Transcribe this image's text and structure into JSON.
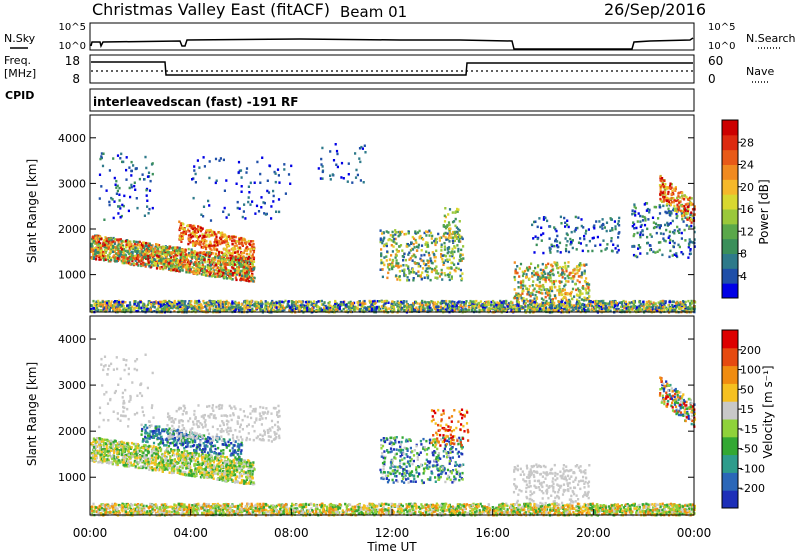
{
  "header": {
    "title": "Christmas Valley East (fitACF)",
    "beam": "Beam 01",
    "date": "26/Sep/2016"
  },
  "strips": {
    "nsky_label": "N.Sky",
    "nsky_ticks": [
      "10^5",
      "10^0"
    ],
    "nsearch_label": "N.Search",
    "nsearch_ticks": [
      "10^5",
      "10^0"
    ],
    "freq_label": "Freq.",
    "freq_unit": "[MHz]",
    "freq_ticks": [
      "18",
      "8"
    ],
    "nave_label": "Nave",
    "nave_ticks": [
      "60",
      "0"
    ],
    "cpid_label": "CPID",
    "cpid_text": "interleavedscan (fast) -191 RF"
  },
  "chart_data": [
    {
      "type": "heatmap",
      "name": "power",
      "ylabel": "Slant Range [km]",
      "yticks": [
        "4000",
        "3000",
        "2000",
        "1000"
      ],
      "xlim": [
        0,
        24
      ],
      "ylim": [
        180,
        4500
      ],
      "colorbar": {
        "label": "Power [dB]",
        "ticks": [
          "28",
          "24",
          "20",
          "16",
          "12",
          "8",
          "4"
        ],
        "colors": [
          "#0000e6",
          "#1f4fa8",
          "#2e7a8a",
          "#3a8f5a",
          "#5aa84a",
          "#9ac83a",
          "#d8d830",
          "#f5b82a",
          "#f08a20",
          "#e85a18",
          "#dd2a10",
          "#cc0000"
        ]
      },
      "echo_regions": [
        {
          "t": [
            0.0,
            6.5
          ],
          "range": [
            800,
            1900
          ],
          "level": "high"
        },
        {
          "t": [
            3.5,
            6.5
          ],
          "range": [
            1400,
            2200
          ],
          "level": "high"
        },
        {
          "t": [
            12.5,
            14.8
          ],
          "range": [
            900,
            1900
          ],
          "level": "mid"
        },
        {
          "t": [
            17.0,
            19.5
          ],
          "range": [
            500,
            1300
          ],
          "level": "mid"
        },
        {
          "t": [
            22.5,
            24.0
          ],
          "range": [
            2000,
            3200
          ],
          "level": "high"
        },
        {
          "t": [
            0.0,
            24.0
          ],
          "range": [
            200,
            400
          ],
          "level": "ground"
        }
      ]
    },
    {
      "type": "heatmap",
      "name": "velocity",
      "ylabel": "Slant Range [km]",
      "yticks": [
        "4000",
        "3000",
        "2000",
        "1000"
      ],
      "xlabel": "Time UT",
      "xticks": [
        "00:00",
        "04:00",
        "08:00",
        "12:00",
        "16:00",
        "20:00",
        "00:00"
      ],
      "xlim": [
        0,
        24
      ],
      "ylim": [
        180,
        4500
      ],
      "colorbar": {
        "label": "Velocity [m s⁻¹]",
        "ticks": [
          "200",
          "100",
          "50",
          "15",
          "-15",
          "-50",
          "-100",
          "-200"
        ],
        "colors": [
          "#1d2fb8",
          "#2b67b8",
          "#2e9c8c",
          "#33a833",
          "#8fd23a",
          "#c8c8c8",
          "#f5c020",
          "#f08c10",
          "#e64a10",
          "#dd0000"
        ]
      }
    }
  ]
}
